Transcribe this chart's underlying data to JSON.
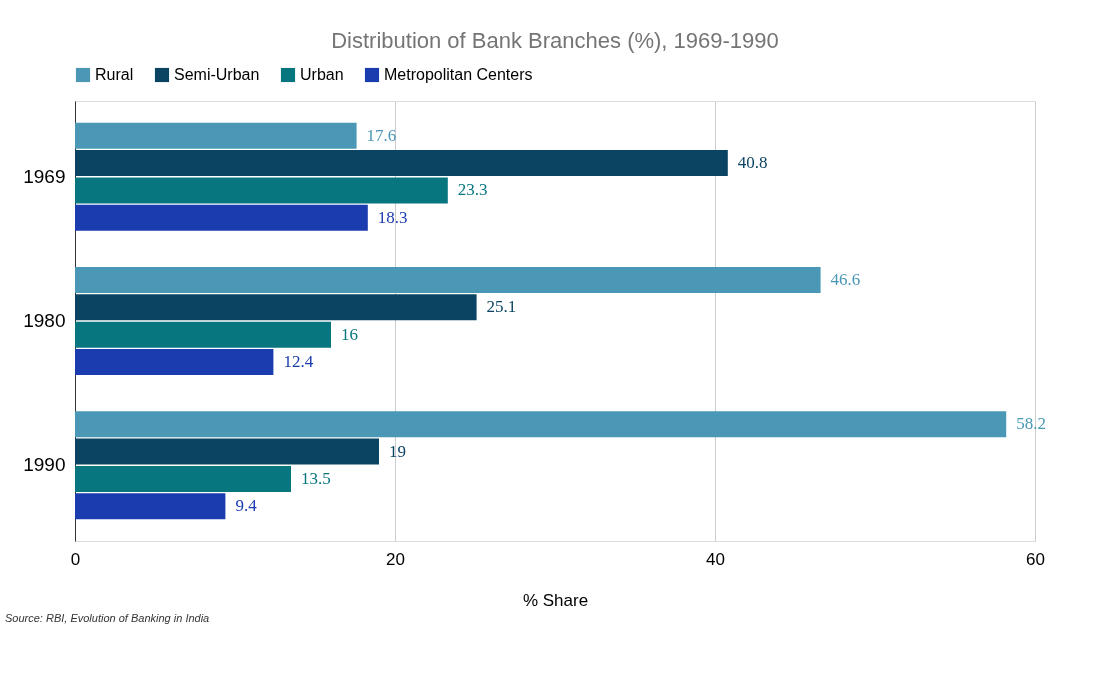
{
  "chart_data": {
    "type": "bar",
    "orientation": "horizontal",
    "title": "Distribution of Bank Branches (%), 1969-1990",
    "xlabel": "% Share",
    "categories": [
      "1969",
      "1980",
      "1990"
    ],
    "series": [
      {
        "name": "Rural",
        "color": "#4a98b5",
        "values": [
          17.6,
          46.6,
          58.2
        ]
      },
      {
        "name": "Semi-Urban",
        "color": "#0b4463",
        "values": [
          40.8,
          25.1,
          19
        ]
      },
      {
        "name": "Urban",
        "color": "#07767f",
        "values": [
          23.3,
          16,
          13.5
        ]
      },
      {
        "name": "Metropolitan Centers",
        "color": "#1a3cae",
        "values": [
          18.3,
          12.4,
          9.4
        ]
      }
    ],
    "xlim": [
      0,
      60
    ],
    "xticks": [
      0,
      20,
      40,
      60
    ],
    "grid": "x",
    "legend": "top",
    "data_labels": true,
    "annotations": [
      "Source: RBI, Evolution of Banking in India"
    ]
  }
}
